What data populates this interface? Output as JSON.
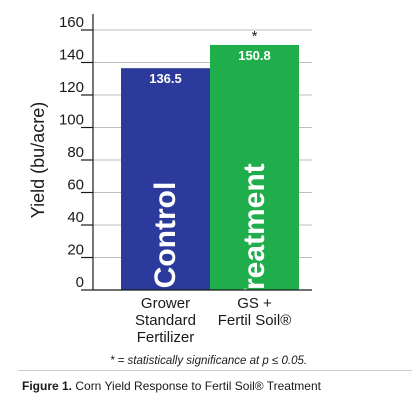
{
  "chart_data": {
    "type": "bar",
    "categories": [
      [
        "Grower",
        "Standard",
        "Fertilizer"
      ],
      [
        "GS +",
        "Fertil Soil®"
      ]
    ],
    "values": [
      136.5,
      150.8
    ],
    "value_labels": [
      "136.5",
      "150.8"
    ],
    "bar_texts": [
      "Control",
      "Treatment"
    ],
    "significance": [
      "",
      "*"
    ],
    "colors": [
      "#2b3a9b",
      "#1fae4b"
    ],
    "ylabel": "Yield (bu/acre)",
    "ylim": [
      0,
      160
    ],
    "yticks": [
      0,
      20,
      40,
      60,
      80,
      100,
      120,
      140,
      160
    ],
    "grid": true,
    "footnote": "* = statistically significance at p ≤ 0.05.",
    "caption": {
      "prefix": "Figure 1.",
      "text": " Corn Yield Response to Fertil Soil® Treatment"
    }
  }
}
